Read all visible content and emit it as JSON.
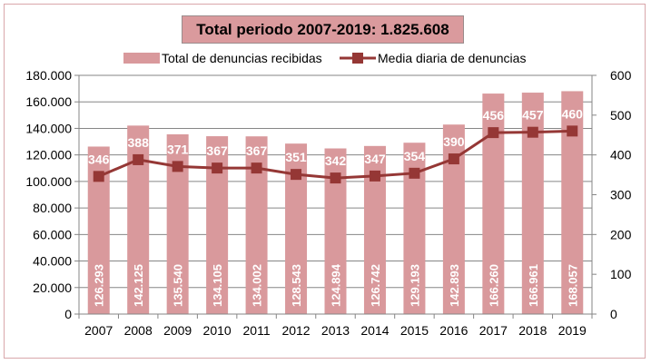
{
  "chart_data": {
    "type": "bar+line",
    "title": "Total periodo 2007-2019:  1.825.608",
    "categories": [
      "2007",
      "2008",
      "2009",
      "2010",
      "2011",
      "2012",
      "2013",
      "2014",
      "2015",
      "2016",
      "2017",
      "2018",
      "2019"
    ],
    "series": [
      {
        "name": "Total de denuncias recibidas",
        "type": "bar",
        "axis": "left",
        "values": [
          126293,
          142125,
          135540,
          134105,
          134002,
          128543,
          124894,
          126742,
          129193,
          142893,
          166260,
          166961,
          168057
        ],
        "labels": [
          "126.293",
          "142.125",
          "135.540",
          "134.105",
          "134.002",
          "128.543",
          "124.894",
          "126.742",
          "129.193",
          "142.893",
          "166.260",
          "166.961",
          "168.057"
        ],
        "color": "#d9999c"
      },
      {
        "name": "Media diaria de denuncias",
        "type": "line",
        "axis": "right",
        "values": [
          346,
          388,
          371,
          367,
          367,
          351,
          342,
          347,
          354,
          390,
          456,
          457,
          460
        ],
        "labels": [
          "346",
          "388",
          "371",
          "367",
          "367",
          "351",
          "342",
          "347",
          "354",
          "390",
          "456",
          "457",
          "460"
        ],
        "color": "#953735"
      }
    ],
    "y_left": {
      "range": [
        0,
        180000
      ],
      "ticks": [
        0,
        20000,
        40000,
        60000,
        80000,
        100000,
        120000,
        140000,
        160000,
        180000
      ],
      "tick_labels": [
        "0",
        "20.000",
        "40.000",
        "60.000",
        "80.000",
        "100.000",
        "120.000",
        "140.000",
        "160.000",
        "180.000"
      ]
    },
    "y_right": {
      "range": [
        0,
        600
      ],
      "ticks": [
        0,
        100,
        200,
        300,
        400,
        500,
        600
      ],
      "tick_labels": [
        "0",
        "100",
        "200",
        "300",
        "400",
        "500",
        "600"
      ]
    },
    "grid": true,
    "legend": "top-center"
  }
}
